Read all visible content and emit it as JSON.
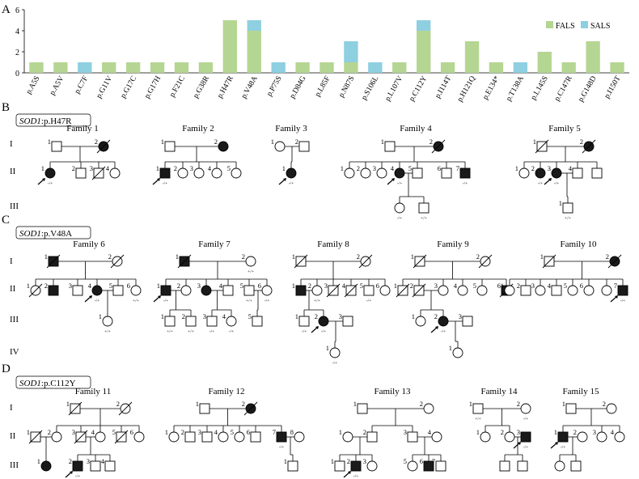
{
  "panels": {
    "a": "A",
    "b": "B",
    "c": "C",
    "d": "D"
  },
  "colors": {
    "fals": "#b5d692",
    "sals": "#8ecfe0",
    "affected": "#1a1a1a",
    "line": "#000000"
  },
  "chart_data": {
    "type": "bar",
    "stacked": true,
    "categories": [
      "p.A5S",
      "p.A5V",
      "p.C7F",
      "p.G11V",
      "p.G17C",
      "p.G17H",
      "p.F21C",
      "p.G38R",
      "p.H47R",
      "p.V48A",
      "p.P75S",
      "p.D84G",
      "p.L85F",
      "p.N87S",
      "p.S106L",
      "p.L107V",
      "p.C112Y",
      "p.I114T",
      "p.H121Q",
      "p.E134*",
      "p.T138A",
      "p.L145S",
      "p.C147R",
      "p.G148D",
      "p.I150T"
    ],
    "series": [
      {
        "name": "FALS",
        "color": "#b5d692",
        "values": [
          1,
          1,
          0,
          1,
          1,
          1,
          1,
          1,
          5,
          4,
          0,
          1,
          1,
          1,
          0,
          1,
          4,
          1,
          3,
          1,
          0,
          2,
          1,
          3,
          1
        ]
      },
      {
        "name": "SALS",
        "color": "#8ecfe0",
        "values": [
          0,
          0,
          1,
          0,
          0,
          0,
          0,
          0,
          0,
          1,
          1,
          0,
          0,
          2,
          1,
          0,
          1,
          0,
          0,
          0,
          1,
          0,
          0,
          0,
          0
        ]
      }
    ],
    "yticks": [
      "0",
      "2",
      "4",
      "6"
    ],
    "ylim": [
      0,
      6
    ],
    "legend_placement": "top-right",
    "grid": false
  },
  "pedigree": {
    "gen_labels": [
      "I",
      "II",
      "III",
      "IV"
    ],
    "genotype": {
      "het": "-/+",
      "wt": "+/+"
    },
    "group_labels": {
      "b": {
        "gene": "SOD1",
        "mutation": ":p.H47R"
      },
      "c": {
        "gene": "SOD1",
        "mutation": ":p.V48A"
      },
      "d": {
        "gene": "SOD1",
        "mutation": ":p.C112Y"
      }
    },
    "families": [
      "Family 1",
      "Family 2",
      "Family 3",
      "Family 4",
      "Family 5",
      "Family 6",
      "Family 7",
      "Family 8",
      "Family 9",
      "Family 10",
      "Family 11",
      "Family 12",
      "Family 13",
      "Family 14",
      "Family 15"
    ]
  }
}
